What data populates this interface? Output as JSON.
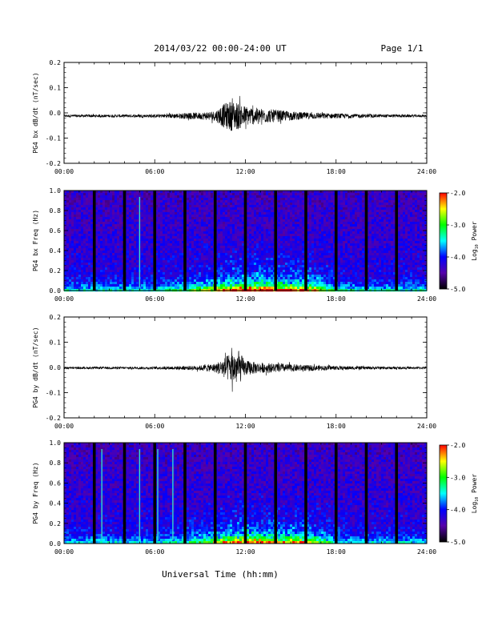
{
  "header": {
    "title": "2014/03/22  00:00-24:00 UT",
    "page": "Page 1/1"
  },
  "footer": {
    "xlabel": "Universal Time (hh:mm)"
  },
  "colorbar": {
    "ticks": [
      "-2.0",
      "-3.0",
      "-4.0",
      "-5.0"
    ],
    "label_prefix": "Log",
    "label_sub": "10",
    "label_suffix": " Power",
    "colors": [
      "#ff0000",
      "#ffff00",
      "#00ff00",
      "#00ffff",
      "#0000ff",
      "#5500aa",
      "#000000"
    ]
  },
  "chart_data": [
    {
      "type": "line",
      "ylabel": "PG4 bx dB/dt (nT/sec)",
      "xlim": [
        0,
        24
      ],
      "ylim": [
        -0.2,
        0.2
      ],
      "xticks": [
        "00:00",
        "06:00",
        "12:00",
        "18:00",
        "24:00"
      ],
      "yticks": [
        "0.2",
        "0.1",
        "0.0",
        "-0.1",
        "-0.2"
      ],
      "baseline": -0.012,
      "series": [
        {
          "x": [
            0,
            6,
            8,
            9,
            10,
            10.5,
            11,
            11.5,
            12,
            12.5,
            13,
            14,
            15,
            16,
            17,
            18,
            20,
            24
          ],
          "amplitude": [
            0.005,
            0.006,
            0.012,
            0.014,
            0.02,
            0.045,
            0.06,
            0.055,
            0.04,
            0.035,
            0.03,
            0.025,
            0.018,
            0.014,
            0.012,
            0.01,
            0.007,
            0.005
          ]
        }
      ]
    },
    {
      "type": "heatmap",
      "ylabel": "PG4 bx Freq (Hz)",
      "xlim": [
        0,
        24
      ],
      "ylim": [
        0.0,
        1.0
      ],
      "xticks": [
        "00:00",
        "06:00",
        "12:00",
        "18:00",
        "24:00"
      ],
      "yticks": [
        "1.0",
        "0.8",
        "0.6",
        "0.4",
        "0.2",
        "0.0"
      ],
      "clim": [
        -5.0,
        -2.0
      ],
      "gaps": [
        2,
        4,
        6,
        8,
        10,
        12,
        14,
        16,
        18,
        20,
        22
      ],
      "lines": [
        5.0
      ]
    },
    {
      "type": "line",
      "ylabel": "PG4 by dB/dt (nT/sec)",
      "xlim": [
        0,
        24
      ],
      "ylim": [
        -0.2,
        0.2
      ],
      "xticks": [
        "00:00",
        "06:00",
        "12:00",
        "18:00",
        "24:00"
      ],
      "yticks": [
        "0.2",
        "0.1",
        "0.0",
        "-0.1",
        "-0.2"
      ],
      "baseline": -0.002,
      "series": [
        {
          "x": [
            0,
            6,
            8,
            9,
            10,
            10.5,
            11,
            11.5,
            12,
            12.5,
            13,
            14,
            15,
            16,
            17,
            18,
            20,
            24
          ],
          "amplitude": [
            0.004,
            0.005,
            0.008,
            0.01,
            0.018,
            0.035,
            0.06,
            0.07,
            0.03,
            0.025,
            0.02,
            0.018,
            0.015,
            0.012,
            0.01,
            0.008,
            0.006,
            0.004
          ]
        }
      ]
    },
    {
      "type": "heatmap",
      "ylabel": "PG4 by Freq (Hz)",
      "xlim": [
        0,
        24
      ],
      "ylim": [
        0.0,
        1.0
      ],
      "xticks": [
        "00:00",
        "06:00",
        "12:00",
        "18:00",
        "24:00"
      ],
      "yticks": [
        "1.0",
        "0.8",
        "0.6",
        "0.4",
        "0.2",
        "0.0"
      ],
      "clim": [
        -5.0,
        -2.0
      ],
      "gaps": [
        2,
        4,
        6,
        8,
        10,
        12,
        14,
        16,
        18,
        20,
        22
      ],
      "lines": [
        2.5,
        5.0,
        6.2,
        7.2
      ]
    }
  ]
}
